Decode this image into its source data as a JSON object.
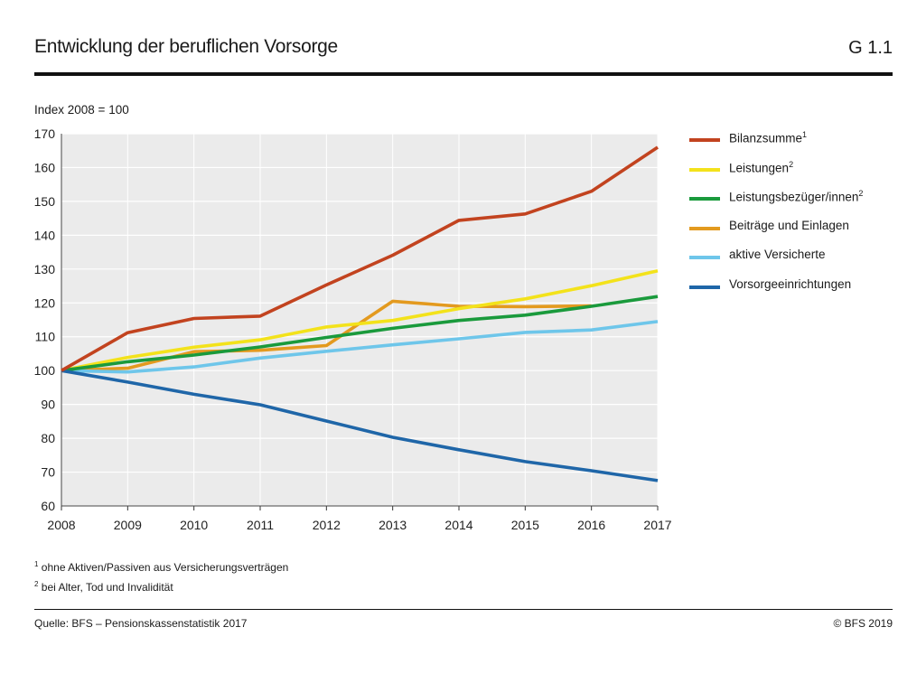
{
  "header": {
    "title": "Entwicklung der beruflichen Vorsorge",
    "figure_number": "G 1.1"
  },
  "chart_data": {
    "type": "line",
    "ylabel": "Index 2008 = 100",
    "ylim": [
      60,
      170
    ],
    "yticks": [
      "60",
      "70",
      "80",
      "90",
      "100",
      "110",
      "120",
      "130",
      "140",
      "150",
      "160",
      "170"
    ],
    "x": [
      "2008",
      "2009",
      "2010",
      "2011",
      "2012",
      "2013",
      "2014",
      "2015",
      "2016",
      "2017"
    ],
    "grid": true,
    "legend_position": "right",
    "series": [
      {
        "name": "Bilanzsumme",
        "footnote": "1",
        "color": "#c2431f",
        "values": [
          100,
          111.2,
          115.4,
          116.1,
          125.3,
          134.1,
          144.4,
          146.3,
          153.0,
          166.0
        ]
      },
      {
        "name": "Leistungen",
        "footnote": "2",
        "color": "#f3e21b",
        "values": [
          100,
          103.9,
          106.9,
          109.1,
          112.9,
          114.8,
          118.3,
          121.2,
          125.1,
          129.5
        ]
      },
      {
        "name": "Leistungsbezüger/innen",
        "footnote": "2",
        "color": "#1a9a3c",
        "values": [
          100,
          102.6,
          104.6,
          107.0,
          109.8,
          112.5,
          114.8,
          116.4,
          119.0,
          121.9
        ]
      },
      {
        "name": "Beiträge und Einlagen",
        "footnote": "",
        "color": "#e39a1f",
        "values": [
          100,
          100.7,
          105.6,
          106.0,
          107.4,
          120.5,
          119.0,
          118.9,
          119.1,
          null
        ]
      },
      {
        "name": "aktive Versicherte",
        "footnote": "",
        "color": "#6ec6ea",
        "values": [
          100,
          99.6,
          101.1,
          103.7,
          105.7,
          107.6,
          109.4,
          111.3,
          112.0,
          114.5
        ]
      },
      {
        "name": "Vorsorgeeinrichtungen",
        "footnote": "",
        "color": "#1f66a8",
        "values": [
          100,
          96.6,
          93.0,
          89.9,
          85.1,
          80.3,
          76.6,
          73.1,
          70.4,
          67.5
        ]
      }
    ]
  },
  "footnotes": {
    "fn1_mark": "1",
    "fn1": "ohne Aktiven/Passiven aus Versicherungsverträgen",
    "fn2_mark": "2",
    "fn2": "bei Alter, Tod und Invalidität"
  },
  "footer": {
    "source": "Quelle: BFS – Pensionskassenstatistik 2017",
    "copyright": "© BFS 2019"
  }
}
